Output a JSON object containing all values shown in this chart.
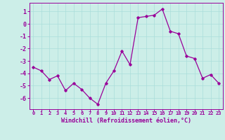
{
  "x": [
    0,
    1,
    2,
    3,
    4,
    5,
    6,
    7,
    8,
    9,
    10,
    11,
    12,
    13,
    14,
    15,
    16,
    17,
    18,
    19,
    20,
    21,
    22,
    23
  ],
  "y": [
    -3.5,
    -3.8,
    -4.5,
    -4.2,
    -5.4,
    -4.8,
    -5.3,
    -6.0,
    -6.5,
    -4.8,
    -3.8,
    -2.2,
    -3.3,
    0.5,
    0.6,
    0.7,
    1.2,
    -0.6,
    -0.8,
    -2.6,
    -2.8,
    -4.4,
    -4.1,
    -4.8
  ],
  "line_color": "#990099",
  "marker": "D",
  "markersize": 1.8,
  "linewidth": 0.9,
  "xlabel": "Windchill (Refroidissement éolien,°C)",
  "xlabel_fontsize": 6.0,
  "bg_color": "#cceee8",
  "grid_color": "#aaddda",
  "tick_color": "#990099",
  "label_color": "#990099",
  "yticks": [
    -6,
    -5,
    -4,
    -3,
    -2,
    -1,
    0,
    1
  ],
  "xticks": [
    0,
    1,
    2,
    3,
    4,
    5,
    6,
    7,
    8,
    9,
    10,
    11,
    12,
    13,
    14,
    15,
    16,
    17,
    18,
    19,
    20,
    21,
    22,
    23
  ],
  "ylim": [
    -6.9,
    1.7
  ],
  "xlim": [
    -0.5,
    23.5
  ],
  "ytick_fontsize": 6.0,
  "xtick_fontsize": 5.0
}
